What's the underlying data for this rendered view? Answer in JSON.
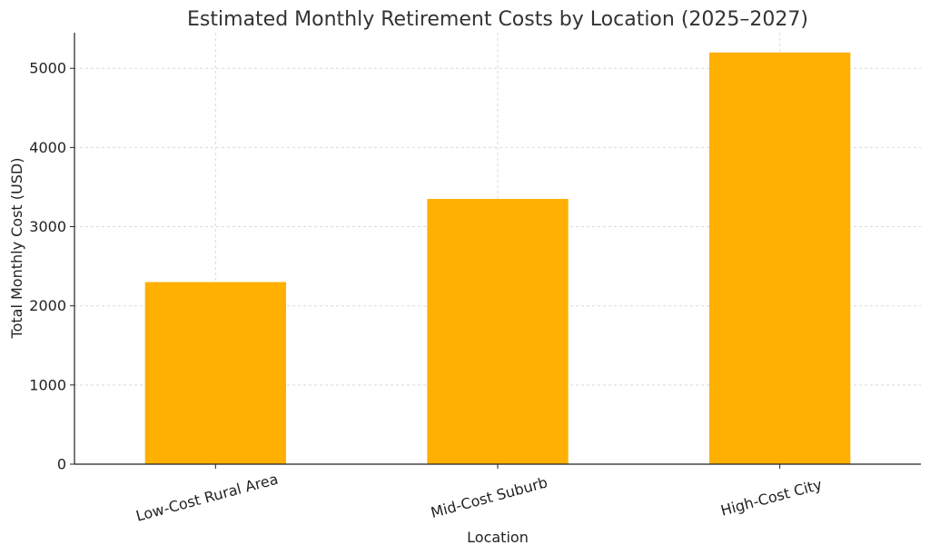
{
  "chart_data": {
    "type": "bar",
    "title": "Estimated Monthly Retirement Costs by Location (2025–2027)",
    "xlabel": "Location",
    "ylabel": "Total Monthly Cost (USD)",
    "categories": [
      "Low-Cost Rural Area",
      "Mid-Cost Suburb",
      "High-Cost City"
    ],
    "values": [
      2300,
      3350,
      5200
    ],
    "ylim": [
      0,
      5450
    ],
    "yticks": [
      0,
      1000,
      2000,
      3000,
      4000,
      5000
    ],
    "grid": true,
    "bar_color": "#FFB000"
  }
}
